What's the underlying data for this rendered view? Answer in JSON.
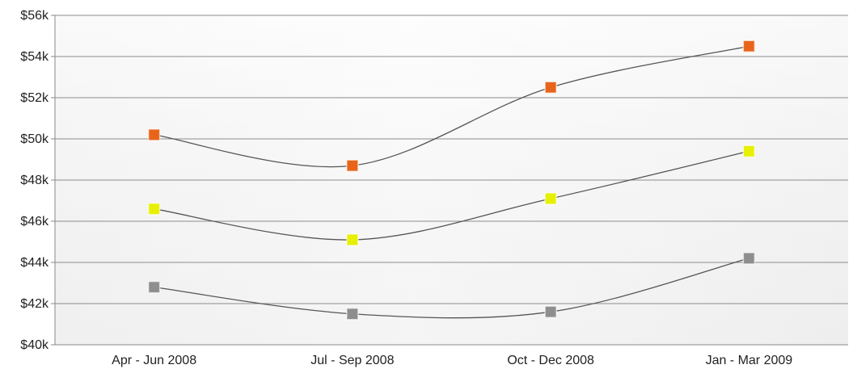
{
  "chart_data": {
    "type": "line",
    "title": "",
    "xlabel": "",
    "ylabel": "",
    "categories": [
      "Apr - Jun 2008",
      "Jul - Sep 2008",
      "Oct - Dec 2008",
      "Jan - Mar 2009"
    ],
    "ylim": [
      40000,
      56000
    ],
    "yticks": [
      40000,
      42000,
      44000,
      46000,
      48000,
      50000,
      52000,
      54000,
      56000
    ],
    "ytick_labels": [
      "$40k",
      "$42k",
      "$44k",
      "$46k",
      "$48k",
      "$50k",
      "$52k",
      "$54k",
      "$56k"
    ],
    "grid": true,
    "legend": "none",
    "line_style": "smooth",
    "marker": "square",
    "series": [
      {
        "values": [
          50200,
          48700,
          52500,
          54500
        ],
        "color": "#e8641a"
      },
      {
        "values": [
          46600,
          45100,
          47100,
          49400
        ],
        "color": "#e6f000"
      },
      {
        "values": [
          42800,
          41500,
          41600,
          44200
        ],
        "color": "#8e8e8e"
      }
    ]
  }
}
